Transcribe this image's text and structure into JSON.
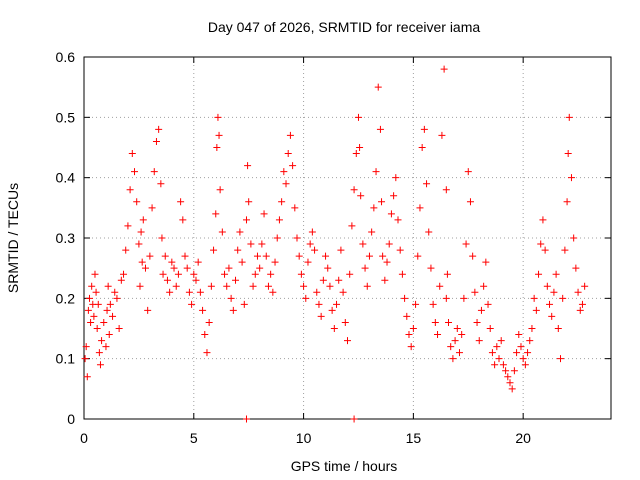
{
  "chart_data": {
    "type": "scatter",
    "title": "Day 047 of 2026, SRMTID for receiver iama",
    "xlabel": "GPS time / hours",
    "ylabel": "SRMTID / TECUs",
    "xlim": [
      0,
      24
    ],
    "ylim": [
      0,
      0.6
    ],
    "xticks": [
      0,
      5,
      10,
      15,
      20
    ],
    "yticks": [
      0,
      0.1,
      0.2,
      0.3,
      0.4,
      0.5,
      0.6
    ],
    "xtick_labels": [
      "0",
      "5",
      "10",
      "15",
      "20"
    ],
    "ytick_labels": [
      "0",
      "0.1",
      "0.2",
      "0.3",
      "0.4",
      "0.5",
      "0.6"
    ],
    "grid": true,
    "marker": "+",
    "marker_color": "#ff0000",
    "series": [
      {
        "name": "SRMTID",
        "x": [
          0.05,
          0.1,
          0.15,
          0.2,
          0.25,
          0.3,
          0.35,
          0.4,
          0.45,
          0.5,
          0.55,
          0.6,
          0.65,
          0.7,
          0.75,
          0.8,
          0.9,
          1.0,
          1.05,
          1.1,
          1.15,
          1.2,
          1.3,
          1.4,
          1.5,
          1.6,
          1.7,
          1.8,
          1.9,
          2.0,
          2.1,
          2.2,
          2.3,
          2.4,
          2.5,
          2.55,
          2.6,
          2.65,
          2.7,
          2.8,
          2.9,
          3.0,
          3.1,
          3.2,
          3.3,
          3.4,
          3.5,
          3.55,
          3.6,
          3.7,
          3.8,
          3.9,
          4.0,
          4.1,
          4.2,
          4.3,
          4.4,
          4.5,
          4.6,
          4.7,
          4.8,
          4.9,
          5.0,
          5.1,
          5.2,
          5.3,
          5.4,
          5.5,
          5.6,
          5.7,
          5.8,
          5.9,
          6.0,
          6.05,
          6.1,
          6.15,
          6.2,
          6.3,
          6.4,
          6.5,
          6.6,
          6.7,
          6.8,
          6.9,
          7.0,
          7.1,
          7.2,
          7.3,
          7.4,
          7.45,
          7.5,
          7.6,
          7.7,
          7.8,
          7.9,
          8.0,
          8.1,
          8.2,
          8.3,
          8.4,
          8.5,
          8.6,
          8.7,
          8.8,
          8.9,
          9.0,
          9.1,
          9.2,
          9.3,
          9.4,
          9.5,
          9.6,
          9.7,
          9.8,
          9.9,
          10.0,
          10.1,
          10.2,
          10.3,
          10.4,
          10.5,
          10.6,
          10.7,
          10.8,
          10.9,
          11.0,
          11.1,
          11.2,
          11.3,
          11.4,
          11.5,
          11.6,
          11.7,
          11.8,
          11.9,
          12.0,
          12.1,
          12.2,
          12.3,
          12.4,
          12.5,
          12.55,
          12.6,
          12.7,
          12.8,
          12.9,
          13.0,
          13.1,
          13.2,
          13.3,
          13.4,
          13.5,
          13.55,
          13.6,
          13.7,
          13.8,
          13.9,
          14.0,
          14.1,
          14.2,
          14.3,
          14.4,
          14.5,
          14.6,
          14.7,
          14.8,
          14.9,
          15.0,
          15.1,
          15.2,
          15.3,
          15.4,
          15.5,
          15.6,
          15.7,
          15.8,
          15.9,
          16.0,
          16.1,
          16.2,
          16.3,
          16.4,
          16.5,
          16.55,
          16.6,
          16.7,
          16.8,
          16.9,
          17.0,
          17.1,
          17.2,
          17.3,
          17.4,
          17.5,
          17.6,
          17.7,
          17.8,
          17.9,
          18.0,
          18.1,
          18.2,
          18.3,
          18.4,
          18.5,
          18.6,
          18.7,
          18.8,
          18.9,
          19.0,
          19.1,
          19.2,
          19.3,
          19.4,
          19.5,
          19.6,
          19.7,
          19.8,
          19.9,
          20.0,
          20.1,
          20.2,
          20.3,
          20.4,
          20.5,
          20.6,
          20.7,
          20.8,
          20.9,
          21.0,
          21.1,
          21.2,
          21.3,
          21.4,
          21.5,
          21.6,
          21.7,
          21.8,
          21.9,
          22.0,
          22.05,
          22.1,
          22.2,
          22.3,
          22.4,
          22.5,
          22.6,
          22.7,
          22.8,
          7.4,
          12.3,
          16.5
        ],
        "y": [
          0.1,
          0.12,
          0.07,
          0.18,
          0.2,
          0.16,
          0.22,
          0.19,
          0.17,
          0.24,
          0.21,
          0.15,
          0.19,
          0.11,
          0.09,
          0.13,
          0.16,
          0.12,
          0.18,
          0.22,
          0.14,
          0.19,
          0.17,
          0.21,
          0.2,
          0.15,
          0.23,
          0.24,
          0.28,
          0.32,
          0.38,
          0.44,
          0.41,
          0.36,
          0.29,
          0.22,
          0.31,
          0.26,
          0.33,
          0.25,
          0.18,
          0.27,
          0.35,
          0.41,
          0.46,
          0.48,
          0.39,
          0.3,
          0.24,
          0.27,
          0.23,
          0.21,
          0.26,
          0.25,
          0.22,
          0.24,
          0.36,
          0.33,
          0.27,
          0.25,
          0.21,
          0.19,
          0.24,
          0.23,
          0.26,
          0.21,
          0.18,
          0.14,
          0.11,
          0.16,
          0.22,
          0.28,
          0.34,
          0.45,
          0.5,
          0.47,
          0.38,
          0.31,
          0.24,
          0.22,
          0.25,
          0.2,
          0.18,
          0.23,
          0.28,
          0.31,
          0.26,
          0.19,
          0.33,
          0.42,
          0.36,
          0.29,
          0.22,
          0.24,
          0.27,
          0.25,
          0.29,
          0.34,
          0.27,
          0.22,
          0.24,
          0.21,
          0.26,
          0.3,
          0.33,
          0.36,
          0.41,
          0.39,
          0.44,
          0.47,
          0.42,
          0.35,
          0.3,
          0.27,
          0.24,
          0.22,
          0.2,
          0.26,
          0.29,
          0.31,
          0.28,
          0.21,
          0.19,
          0.17,
          0.23,
          0.27,
          0.25,
          0.22,
          0.18,
          0.15,
          0.19,
          0.23,
          0.28,
          0.21,
          0.16,
          0.13,
          0.24,
          0.32,
          0.38,
          0.44,
          0.5,
          0.45,
          0.37,
          0.29,
          0.25,
          0.22,
          0.27,
          0.31,
          0.35,
          0.41,
          0.55,
          0.48,
          0.36,
          0.27,
          0.23,
          0.26,
          0.29,
          0.34,
          0.37,
          0.4,
          0.33,
          0.28,
          0.24,
          0.2,
          0.17,
          0.14,
          0.12,
          0.15,
          0.19,
          0.27,
          0.35,
          0.45,
          0.48,
          0.39,
          0.31,
          0.25,
          0.19,
          0.16,
          0.14,
          0.22,
          0.47,
          0.58,
          0.38,
          0.24,
          0.16,
          0.12,
          0.1,
          0.13,
          0.15,
          0.11,
          0.14,
          0.2,
          0.29,
          0.41,
          0.36,
          0.27,
          0.21,
          0.16,
          0.13,
          0.18,
          0.22,
          0.26,
          0.19,
          0.15,
          0.11,
          0.09,
          0.12,
          0.1,
          0.13,
          0.09,
          0.08,
          0.07,
          0.06,
          0.05,
          0.08,
          0.11,
          0.14,
          0.12,
          0.1,
          0.09,
          0.11,
          0.13,
          0.15,
          0.2,
          0.18,
          0.24,
          0.29,
          0.33,
          0.28,
          0.22,
          0.19,
          0.17,
          0.21,
          0.24,
          0.15,
          0.1,
          0.2,
          0.28,
          0.36,
          0.44,
          0.5,
          0.4,
          0.3,
          0.25,
          0.21,
          0.18,
          0.19,
          0.22,
          0.0,
          0.0,
          0.2
        ]
      }
    ]
  }
}
